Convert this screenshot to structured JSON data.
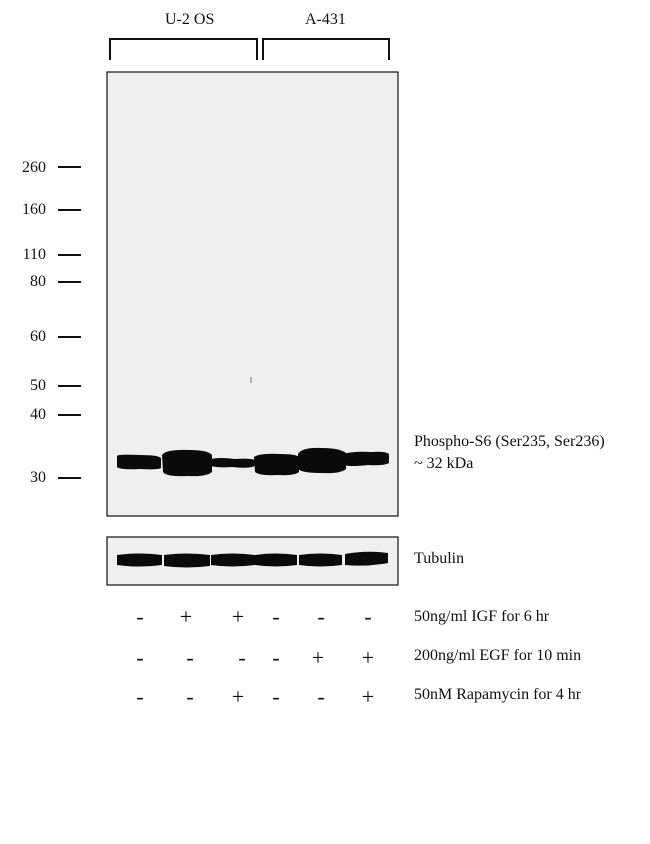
{
  "cell_lines": [
    {
      "label": "U-2 OS"
    },
    {
      "label": "A-431"
    }
  ],
  "mw_markers": [
    "260",
    "160",
    "110",
    "80",
    "60",
    "50",
    "40",
    "30"
  ],
  "band_labels": {
    "target": "Phospho-S6 (Ser235, Ser236)",
    "size": "~ 32 kDa",
    "loading_control": "Tubulin"
  },
  "conditions": [
    {
      "label": "50ng/ml IGF for 6 hr",
      "signs": [
        "-",
        "+",
        "+",
        "-",
        "-",
        "-"
      ]
    },
    {
      "label": "200ng/ml EGF for 10 min",
      "signs": [
        "-",
        "-",
        "-",
        "-",
        "+",
        "+"
      ]
    },
    {
      "label": "50nM Rapamycin for 4 hr",
      "signs": [
        "-",
        "-",
        "+",
        "-",
        "-",
        "+"
      ]
    }
  ],
  "colors": {
    "membrane": "#efefef",
    "band": "#0a0a0a",
    "line": "#111111"
  }
}
